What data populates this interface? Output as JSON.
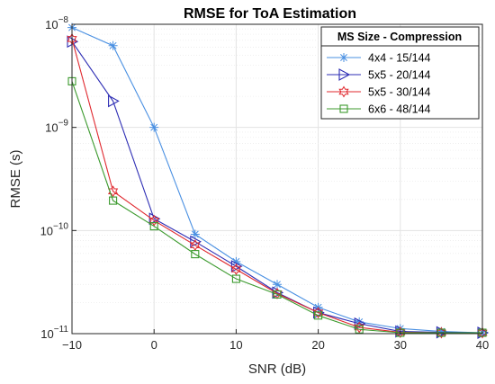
{
  "chart_data": {
    "type": "line",
    "title": "RMSE for ToA Estimation",
    "xlabel": "SNR (dB)",
    "ylabel": "RMSE (s)",
    "xlim": [
      -10,
      40
    ],
    "ylim": [
      1e-11,
      1e-08
    ],
    "yscale": "log",
    "grid": true,
    "x_ticks": [
      -10,
      0,
      10,
      20,
      30,
      40
    ],
    "x_tick_labels": [
      "−10",
      "0",
      "10",
      "20",
      "30",
      "40"
    ],
    "y_ticks": [
      {
        "value": 1e-11,
        "base": "10",
        "exp": "−11"
      },
      {
        "value": 1e-10,
        "base": "10",
        "exp": "−10"
      },
      {
        "value": 1e-09,
        "base": "10",
        "exp": "−9"
      },
      {
        "value": 1e-08,
        "base": "10",
        "exp": "−8"
      }
    ],
    "legend_title": "MS Size - Compression",
    "legend_position": "top-right",
    "x": [
      -10,
      -5,
      0,
      5,
      10,
      15,
      20,
      25,
      30,
      35,
      40
    ],
    "series": [
      {
        "name": "4x4 - 15/144",
        "color": "#4A90E2",
        "marker": "asterisk",
        "values": [
          9.3e-09,
          6.2e-09,
          1e-09,
          9.2e-11,
          5e-11,
          3e-11,
          1.8e-11,
          1.3e-11,
          1.12e-11,
          1.05e-11,
          1.02e-11
        ]
      },
      {
        "name": "5x5 - 20/144",
        "color": "#2D2DB4",
        "marker": "triangle-right",
        "values": [
          6.8e-09,
          1.8e-09,
          1.3e-10,
          7.8e-11,
          4.5e-11,
          2.5e-11,
          1.6e-11,
          1.25e-11,
          1.05e-11,
          1.03e-11,
          1.02e-11
        ]
      },
      {
        "name": "5x5 - 30/144",
        "color": "#E0282E",
        "marker": "hexagram",
        "values": [
          7.2e-09,
          2.4e-10,
          1.25e-10,
          7.2e-11,
          4.2e-11,
          2.45e-11,
          1.6e-11,
          1.15e-11,
          1.03e-11,
          1.02e-11,
          1.02e-11
        ]
      },
      {
        "name": "6x6 - 48/144",
        "color": "#3C9A2E",
        "marker": "square",
        "values": [
          2.8e-09,
          1.95e-10,
          1.1e-10,
          5.9e-11,
          3.4e-11,
          2.4e-11,
          1.5e-11,
          1.1e-11,
          1.02e-11,
          1.02e-11,
          1.02e-11
        ]
      }
    ]
  }
}
